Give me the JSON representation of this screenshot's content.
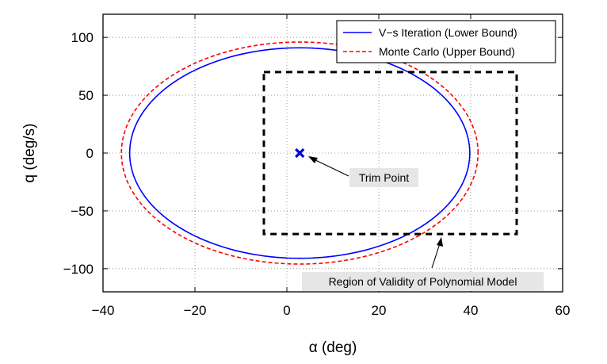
{
  "chart_data": {
    "type": "line",
    "xlabel": "α (deg)",
    "ylabel": "q (deg/s)",
    "xlim": [
      -40,
      60
    ],
    "ylim": [
      -120,
      120
    ],
    "xticks": [
      -40,
      -20,
      0,
      20,
      40,
      60
    ],
    "yticks": [
      -100,
      -50,
      0,
      50,
      100
    ],
    "xtick_labels": [
      "−40",
      "−20",
      "0",
      "20",
      "40",
      "60"
    ],
    "ytick_labels": [
      "−100",
      "−50",
      "0",
      "50",
      "100"
    ],
    "grid": true,
    "legend_position": "top-right",
    "series": [
      {
        "name": "V−s Iteration (Lower Bound)",
        "shape": "ellipse",
        "center": [
          2.8,
          0
        ],
        "semi_axis_alpha": 37,
        "semi_axis_q": 91,
        "color": "#0000ff",
        "dash": "solid"
      },
      {
        "name": "Monte Carlo (Upper Bound)",
        "shape": "ellipse",
        "center": [
          2.8,
          0
        ],
        "semi_axis_alpha": 38.8,
        "semi_axis_q": 96,
        "color": "#ff0000",
        "dash": "dashed"
      }
    ],
    "region": {
      "label": "Region of Validity of Polynomial Model",
      "alpha_range": [
        -5,
        50
      ],
      "q_range": [
        -70,
        70
      ],
      "color": "#000000"
    },
    "trim_point": {
      "label": "Trim Point",
      "alpha": 2.8,
      "q": 0,
      "color": "#0000cc"
    }
  }
}
